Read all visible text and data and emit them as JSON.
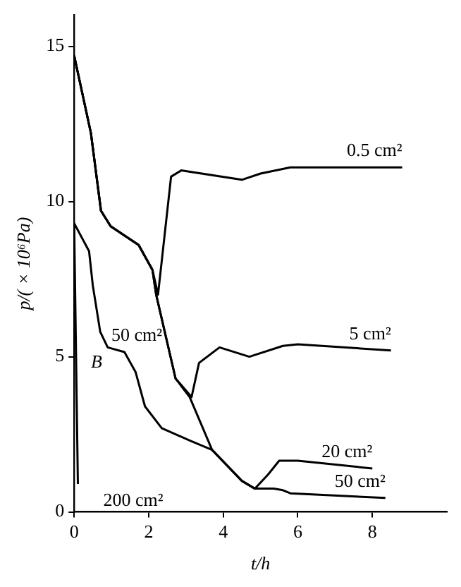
{
  "chart_data": {
    "type": "line",
    "xlabel": "t/h",
    "ylabel": "p/( × 10⁶Pa)",
    "xlim": [
      0,
      10
    ],
    "ylim": [
      0,
      16
    ],
    "xticks": [
      0,
      2,
      4,
      6,
      8
    ],
    "yticks": [
      0,
      5,
      10,
      15
    ],
    "grid": false,
    "legend": false,
    "marker": "none",
    "line_style": "solid",
    "series": [
      {
        "name": "0.5 cm²",
        "color": "#000000",
        "x": [
          0,
          0.45,
          0.72,
          0.98,
          1.73,
          2.1,
          2.25,
          2.6,
          2.87,
          4.5,
          5.0,
          5.8,
          8.8
        ],
        "values": [
          14.7,
          12.2,
          9.7,
          9.2,
          8.6,
          7.8,
          7.0,
          10.8,
          11.0,
          10.7,
          10.9,
          11.1,
          11.1
        ]
      },
      {
        "name": "5 cm²",
        "color": "#000000",
        "x": [
          0,
          0.45,
          0.72,
          0.98,
          1.73,
          2.1,
          2.2,
          2.72,
          3.15,
          3.35,
          3.9,
          4.7,
          5.6,
          6.0,
          8.5
        ],
        "values": [
          14.7,
          12.2,
          9.7,
          9.2,
          8.6,
          7.8,
          7.0,
          4.3,
          3.7,
          4.8,
          5.3,
          5.0,
          5.35,
          5.4,
          5.2
        ]
      },
      {
        "name": "20 cm²",
        "color": "#000000",
        "x": [
          0,
          0.45,
          0.72,
          0.98,
          1.73,
          2.1,
          2.2,
          2.72,
          3.1,
          3.7,
          4.5,
          4.85,
          5.2,
          5.5,
          6.0,
          8.0
        ],
        "values": [
          14.7,
          12.2,
          9.7,
          9.2,
          8.6,
          7.8,
          7.0,
          4.3,
          3.7,
          2.0,
          1.0,
          0.75,
          1.2,
          1.65,
          1.65,
          1.4
        ]
      },
      {
        "name": "50 cm²",
        "color": "#000000",
        "x": [
          0,
          0.4,
          0.5,
          0.7,
          0.9,
          1.35,
          1.65,
          1.9,
          2.35,
          3.1,
          3.7,
          4.5,
          4.85,
          5.35,
          5.6,
          5.8,
          8.35
        ],
        "values": [
          9.3,
          8.4,
          7.3,
          5.8,
          5.3,
          5.15,
          4.5,
          3.4,
          2.7,
          2.3,
          2.0,
          1.0,
          0.75,
          0.75,
          0.7,
          0.6,
          0.45
        ]
      },
      {
        "name": "200 cm²",
        "color": "#000000",
        "x": [
          0,
          0.1
        ],
        "values": [
          9.3,
          0.9
        ]
      }
    ],
    "annotations": [
      "50 cm²",
      "B"
    ]
  }
}
